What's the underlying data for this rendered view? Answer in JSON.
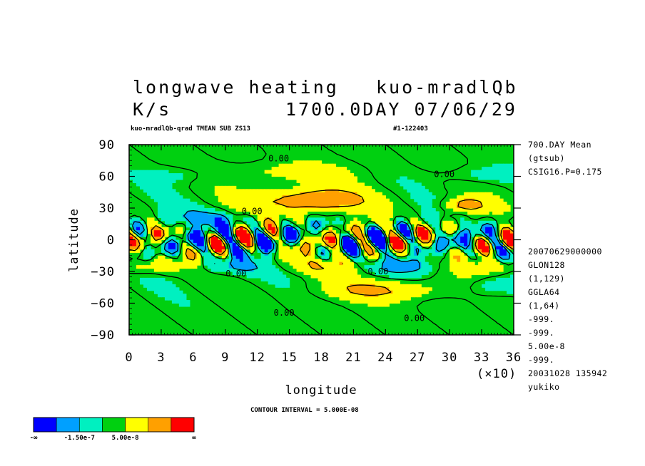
{
  "chart_data": {
    "type": "heatmap",
    "title_line1_left": "longwave heating",
    "title_line1_right": "kuo-mradlQb",
    "title_line2_left": "K/s",
    "title_line2_right": "1700.0DAY 07/06/29",
    "subtitle_left": "kuo-mradlQb-qrad TMEAN SUB ZS13",
    "subtitle_right": "#1-122403",
    "xlabel": "longitude",
    "ylabel": "latitude",
    "x_multiplier_label": "(×10)",
    "xlim": [
      0,
      36
    ],
    "ylim": [
      -90,
      90
    ],
    "x_ticks": [
      "0",
      "3",
      "6",
      "9",
      "12",
      "15",
      "18",
      "21",
      "24",
      "27",
      "30",
      "33",
      "36"
    ],
    "y_ticks": [
      "90",
      "60",
      "30",
      "0",
      "−30",
      "−60",
      "−90"
    ],
    "contour_interval_text": "CONTOUR INTERVAL = 5.000E-08",
    "contour_labels": [
      {
        "text": "0.00",
        "lon": 14.0,
        "lat": 77
      },
      {
        "text": "0.00",
        "lon": 29.5,
        "lat": 62
      },
      {
        "text": "0.00",
        "lon": 11.5,
        "lat": 27
      },
      {
        "text": "0.00",
        "lon": 10.0,
        "lat": -32
      },
      {
        "text": "0.00",
        "lon": 23.3,
        "lat": -30
      },
      {
        "text": "0.00",
        "lon": 14.5,
        "lat": -69
      },
      {
        "text": "0.00",
        "lon": 26.7,
        "lat": -74
      }
    ],
    "side_info_top": [
      "700.DAY Mean",
      "(gtsub)",
      "CSIG16.P=0.175"
    ],
    "side_info_bottom": [
      "20070629000000",
      "GLON128",
      "(1,129)",
      "GGLA64",
      "(1,64)",
      "-999.",
      "-999.",
      "5.00e-8",
      "-999.",
      "20031028 135942",
      "yukiko"
    ],
    "colorbar": {
      "colors": [
        "#0000ff",
        "#00a0ff",
        "#00f0c0",
        "#00d010",
        "#ffff00",
        "#ffa000",
        "#ff0000"
      ],
      "labels": [
        "-∞",
        "-1.50e-7",
        "5.00e-8",
        "∞"
      ]
    },
    "grid": false,
    "legend": "bottom-left"
  }
}
